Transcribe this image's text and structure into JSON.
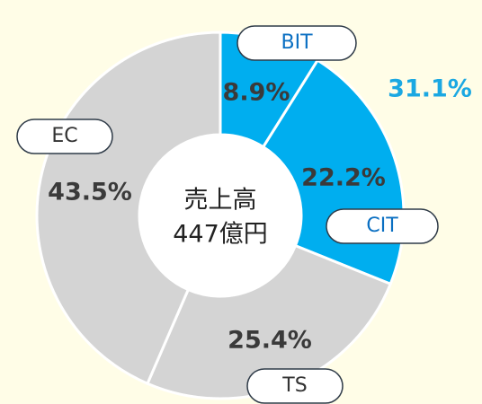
{
  "chart_data": {
    "type": "donut",
    "categories": [
      "BIT",
      "CIT",
      "TS",
      "EC"
    ],
    "values": [
      8.9,
      22.2,
      25.4,
      43.5
    ],
    "value_labels": [
      "8.9%",
      "22.2%",
      "25.4%",
      "43.5%"
    ],
    "colors": [
      "#00aeef",
      "#00aeef",
      "#d4d4d4",
      "#d4d4d4"
    ],
    "label_colors": [
      "#0a6fc2",
      "#0a6fc2",
      "#333333",
      "#333333"
    ],
    "center_text": [
      "売上高",
      "447億円"
    ],
    "annotations": [
      {
        "text": "31.1%",
        "color": "#1ba8e2"
      }
    ]
  }
}
